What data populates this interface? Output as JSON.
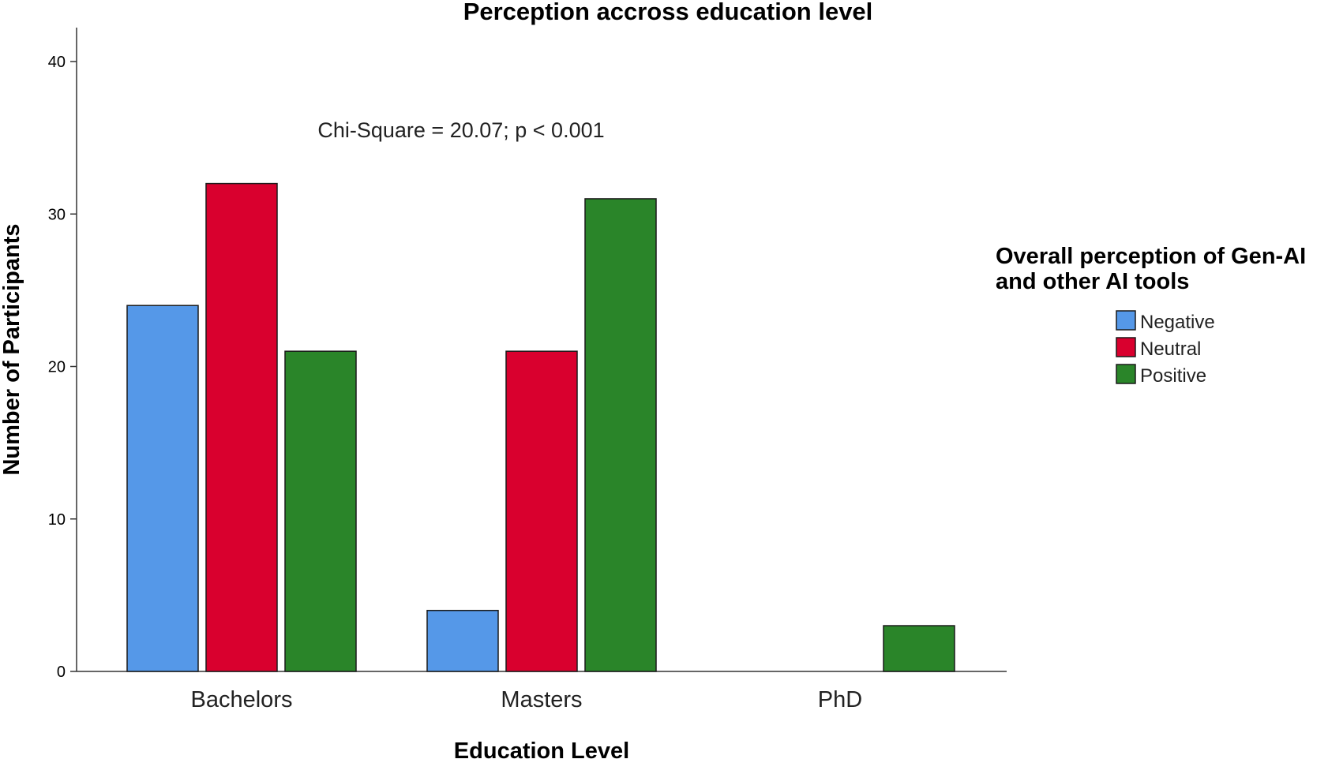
{
  "chart_data": {
    "type": "bar",
    "title": "Perception accross education level",
    "xlabel": "Education Level",
    "ylabel": "Number of Participants",
    "categories": [
      "Bachelors",
      "Masters",
      "PhD"
    ],
    "series": [
      {
        "name": "Negative",
        "color": "#5598E8",
        "values": [
          24,
          4,
          0
        ]
      },
      {
        "name": "Neutral",
        "color": "#D9002E",
        "values": [
          32,
          21,
          0
        ]
      },
      {
        "name": "Positive",
        "color": "#2A8529",
        "values": [
          21,
          31,
          3
        ]
      }
    ],
    "ylim": [
      0,
      40
    ],
    "yticks": [
      0,
      10,
      20,
      30,
      40
    ],
    "grid": false,
    "annotation": "Chi-Square = 20.07; p < 0.001",
    "legend": {
      "title_lines": [
        "Overall perception of Gen-AI",
        "and other AI tools"
      ],
      "placement": "right"
    }
  }
}
